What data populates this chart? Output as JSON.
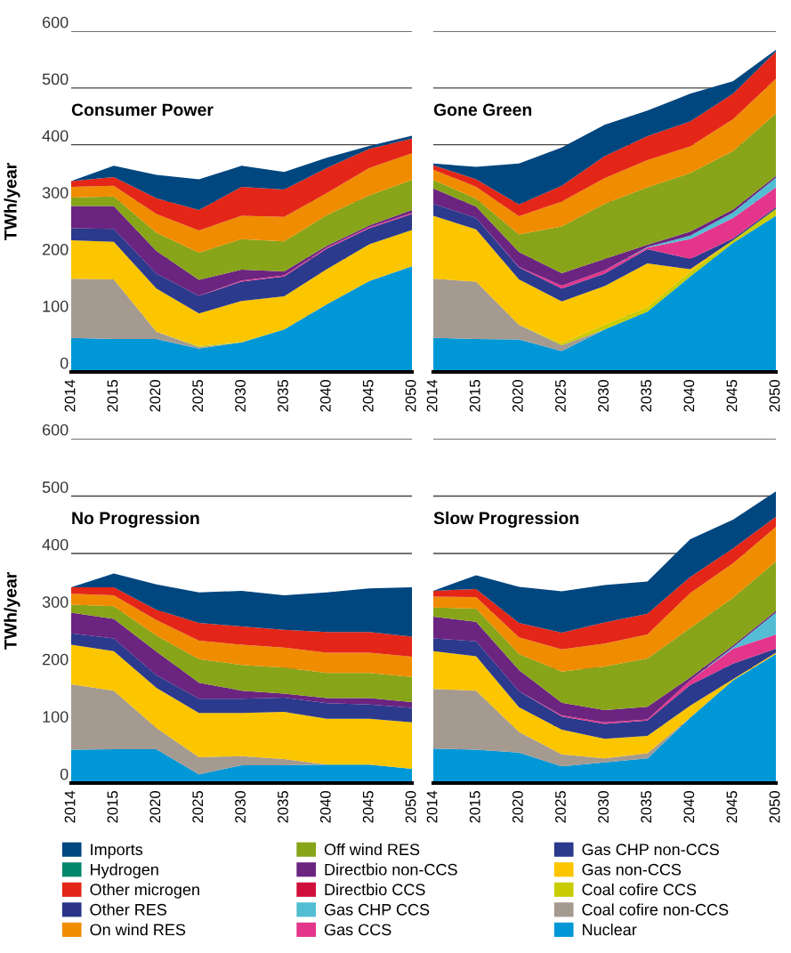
{
  "chart_data": [
    {
      "type": "area",
      "stacked": true,
      "title": "Consumer Power",
      "ylabel": "TWh/year",
      "categories": [
        "2014",
        "2015",
        "2020",
        "2025",
        "2030",
        "2035",
        "2040",
        "2045",
        "2050"
      ],
      "ylim": [
        0,
        600
      ],
      "yticks": [
        0,
        100,
        200,
        300,
        400,
        500,
        600
      ],
      "grid": "y",
      "legend": "bottom",
      "series": [
        {
          "name": "Nuclear",
          "color": "#0097d7",
          "values": [
            60,
            58,
            58,
            41,
            52,
            75,
            119,
            160,
            186
          ]
        },
        {
          "name": "Coal cofire non-CCS",
          "color": "#a59a90",
          "values": [
            104,
            105,
            13,
            3,
            0,
            0,
            0,
            0,
            0
          ]
        },
        {
          "name": "Coal cofire CCS",
          "color": "#c8cc00",
          "values": [
            0,
            0,
            0,
            2,
            1,
            0,
            0,
            0,
            0
          ]
        },
        {
          "name": "Gas non-CCS",
          "color": "#fbc500",
          "values": [
            68,
            66,
            76,
            57,
            72,
            58,
            62,
            65,
            64
          ]
        },
        {
          "name": "Gas CHP non-CCS",
          "color": "#2b3a8c",
          "values": [
            21,
            23,
            26,
            31,
            34,
            35,
            36,
            28,
            28
          ]
        },
        {
          "name": "Gas CCS",
          "color": "#e3358b",
          "values": [
            0,
            0,
            0,
            0,
            2,
            2,
            2,
            2,
            2
          ]
        },
        {
          "name": "Directbio CCS",
          "color": "#d0103a",
          "values": [
            null,
            null,
            null,
            null,
            null,
            null,
            null,
            null,
            null
          ]
        },
        {
          "name": "Directbio non-CCS",
          "color": "#6b2480",
          "values": [
            39,
            40,
            40,
            28,
            19,
            7,
            3,
            3,
            5
          ]
        },
        {
          "name": "Off wind RES",
          "color": "#88a418",
          "values": [
            15,
            17,
            32,
            48,
            54,
            53,
            54,
            53,
            53
          ]
        },
        {
          "name": "On wind RES",
          "color": "#f08c00",
          "values": [
            19,
            19,
            33,
            39,
            41,
            43,
            39,
            48,
            47
          ]
        },
        {
          "name": "Other RES",
          "color": "#2a3388",
          "values": [
            null,
            null,
            null,
            null,
            null,
            null,
            null,
            null,
            null
          ]
        },
        {
          "name": "Other microgen",
          "color": "#e32618",
          "values": [
            10,
            15,
            28,
            36,
            51,
            48,
            44,
            34,
            26
          ]
        },
        {
          "name": "Hydrogen",
          "color": "#00876c",
          "values": [
            null,
            null,
            null,
            null,
            null,
            null,
            null,
            null,
            null
          ]
        },
        {
          "name": "Imports",
          "color": "#00467f",
          "values": [
            0,
            20,
            41,
            54,
            37,
            31,
            18,
            5,
            5
          ]
        }
      ]
    },
    {
      "type": "area",
      "stacked": true,
      "title": "Gone Green",
      "categories": [
        "2014",
        "2015",
        "2020",
        "2025",
        "2030",
        "2035",
        "2040",
        "2045",
        "2050"
      ],
      "ylim": [
        0,
        600
      ],
      "yticks": [
        0,
        100,
        200,
        300,
        400,
        500,
        600
      ],
      "grid": "y",
      "tick_labels": "x",
      "series": [
        {
          "name": "Nuclear",
          "color": "#0097d7",
          "values": [
            60,
            58,
            57,
            37,
            75,
            106,
            168,
            227,
            275
          ]
        },
        {
          "name": "Coal cofire non-CCS",
          "color": "#a59a90",
          "values": [
            104,
            101,
            26,
            10,
            0,
            0,
            0,
            0,
            0
          ]
        },
        {
          "name": "Coal cofire CCS",
          "color": "#c8cc00",
          "values": [
            0,
            0,
            0,
            3,
            8,
            8,
            8,
            5,
            12
          ]
        },
        {
          "name": "Gas non-CCS",
          "color": "#fbc500",
          "values": [
            111,
            92,
            80,
            74,
            68,
            77,
            5,
            0,
            0
          ]
        },
        {
          "name": "Gas CHP non-CCS",
          "color": "#2b3a8c",
          "values": [
            21,
            20,
            21,
            23,
            22,
            25,
            18,
            3,
            3
          ]
        },
        {
          "name": "Gas CCS",
          "color": "#e3358b",
          "values": [
            0,
            0,
            1,
            5,
            6,
            3,
            35,
            36,
            35
          ]
        },
        {
          "name": "Gas CHP CCS",
          "color": "#52bdd3",
          "values": [
            0,
            0,
            0,
            0,
            0,
            1,
            6,
            10,
            17
          ]
        },
        {
          "name": "Directbio non-CCS",
          "color": "#6b2480",
          "values": [
            27,
            20,
            26,
            22,
            20,
            4,
            7,
            5,
            3
          ]
        },
        {
          "name": "Off wind RES",
          "color": "#88a418",
          "values": [
            15,
            14,
            31,
            82,
            97,
            101,
            103,
            103,
            110
          ]
        },
        {
          "name": "On wind RES",
          "color": "#f08c00",
          "values": [
            18,
            21,
            32,
            44,
            45,
            48,
            47,
            56,
            61
          ]
        },
        {
          "name": "Other microgen",
          "color": "#e32618",
          "values": [
            8,
            13,
            21,
            28,
            39,
            42,
            44,
            45,
            48
          ]
        },
        {
          "name": "Imports",
          "color": "#00467f",
          "values": [
            3,
            22,
            72,
            67,
            55,
            45,
            49,
            22,
            3
          ]
        }
      ]
    },
    {
      "type": "area",
      "stacked": true,
      "title": "No Progression",
      "ylabel": "TWh/year",
      "categories": [
        "2014",
        "2015",
        "2020",
        "2025",
        "2030",
        "2035",
        "2040",
        "2045",
        "2050"
      ],
      "ylim": [
        0,
        600
      ],
      "yticks": [
        0,
        100,
        200,
        300,
        400,
        500,
        600
      ],
      "grid": "y",
      "series": [
        {
          "name": "Nuclear",
          "color": "#0097d7",
          "values": [
            58,
            59,
            59,
            15,
            31,
            31,
            32,
            32,
            25
          ]
        },
        {
          "name": "Coal cofire non-CCS",
          "color": "#a59a90",
          "values": [
            114,
            102,
            37,
            30,
            16,
            11,
            0,
            0,
            0
          ]
        },
        {
          "name": "Gas non-CCS",
          "color": "#fbc500",
          "values": [
            69,
            69,
            70,
            77,
            75,
            82,
            80,
            80,
            81
          ]
        },
        {
          "name": "Gas CHP non-CCS",
          "color": "#2b3a8c",
          "values": [
            20,
            22,
            22,
            25,
            25,
            25,
            27,
            25,
            25
          ]
        },
        {
          "name": "Directbio non-CCS",
          "color": "#6b2480",
          "values": [
            36,
            34,
            41,
            28,
            14,
            7,
            9,
            11,
            10
          ]
        },
        {
          "name": "Off wind RES",
          "color": "#88a418",
          "values": [
            14,
            22,
            28,
            41,
            45,
            45,
            44,
            44,
            44
          ]
        },
        {
          "name": "On wind RES",
          "color": "#f08c00",
          "values": [
            19,
            19,
            27,
            32,
            35,
            35,
            35,
            35,
            35
          ]
        },
        {
          "name": "Other microgen",
          "color": "#e32618",
          "values": [
            11,
            14,
            18,
            31,
            32,
            31,
            36,
            36,
            35
          ]
        },
        {
          "name": "Imports",
          "color": "#00467f",
          "values": [
            0,
            24,
            44,
            53,
            62,
            60,
            69,
            76,
            86
          ]
        }
      ]
    },
    {
      "type": "area",
      "stacked": true,
      "title": "Slow Progression",
      "categories": [
        "2014",
        "2015",
        "2020",
        "2025",
        "2030",
        "2035",
        "2040",
        "2045",
        "2050"
      ],
      "ylim": [
        0,
        600
      ],
      "yticks": [
        0,
        100,
        200,
        300,
        400,
        500,
        600
      ],
      "grid": "y",
      "tick_labels": "x",
      "series": [
        {
          "name": "Nuclear",
          "color": "#0097d7",
          "values": [
            60,
            58,
            53,
            29,
            36,
            43,
            114,
            179,
            225
          ]
        },
        {
          "name": "Coal cofire non-CCS",
          "color": "#a59a90",
          "values": [
            104,
            103,
            36,
            21,
            7,
            9,
            0,
            0,
            0
          ]
        },
        {
          "name": "Gas non-CCS",
          "color": "#fbc500",
          "values": [
            66,
            60,
            43,
            43,
            34,
            30,
            21,
            2,
            2
          ]
        },
        {
          "name": "Gas CHP non-CCS",
          "color": "#2b3a8c",
          "values": [
            22,
            26,
            28,
            23,
            26,
            27,
            36,
            27,
            7
          ]
        },
        {
          "name": "Gas CCS",
          "color": "#e3358b",
          "values": [
            0,
            0,
            0,
            2,
            3,
            2,
            8,
            26,
            25
          ]
        },
        {
          "name": "Gas CHP CCS",
          "color": "#52bdd3",
          "values": [
            0,
            0,
            0,
            0,
            0,
            0,
            0,
            3,
            38
          ]
        },
        {
          "name": "Directbio non-CCS",
          "color": "#6b2480",
          "values": [
            38,
            34,
            37,
            22,
            21,
            22,
            5,
            3,
            3
          ]
        },
        {
          "name": "Off wind RES",
          "color": "#88a418",
          "values": [
            16,
            23,
            28,
            54,
            76,
            84,
            86,
            83,
            86
          ]
        },
        {
          "name": "On wind RES",
          "color": "#f08c00",
          "values": [
            19,
            20,
            29,
            39,
            40,
            42,
            61,
            60,
            60
          ]
        },
        {
          "name": "Other microgen",
          "color": "#e32618",
          "values": [
            10,
            14,
            25,
            29,
            37,
            36,
            28,
            26,
            18
          ]
        },
        {
          "name": "Imports",
          "color": "#00467f",
          "values": [
            0,
            24,
            63,
            72,
            65,
            56,
            66,
            50,
            44
          ]
        }
      ]
    }
  ]
}
